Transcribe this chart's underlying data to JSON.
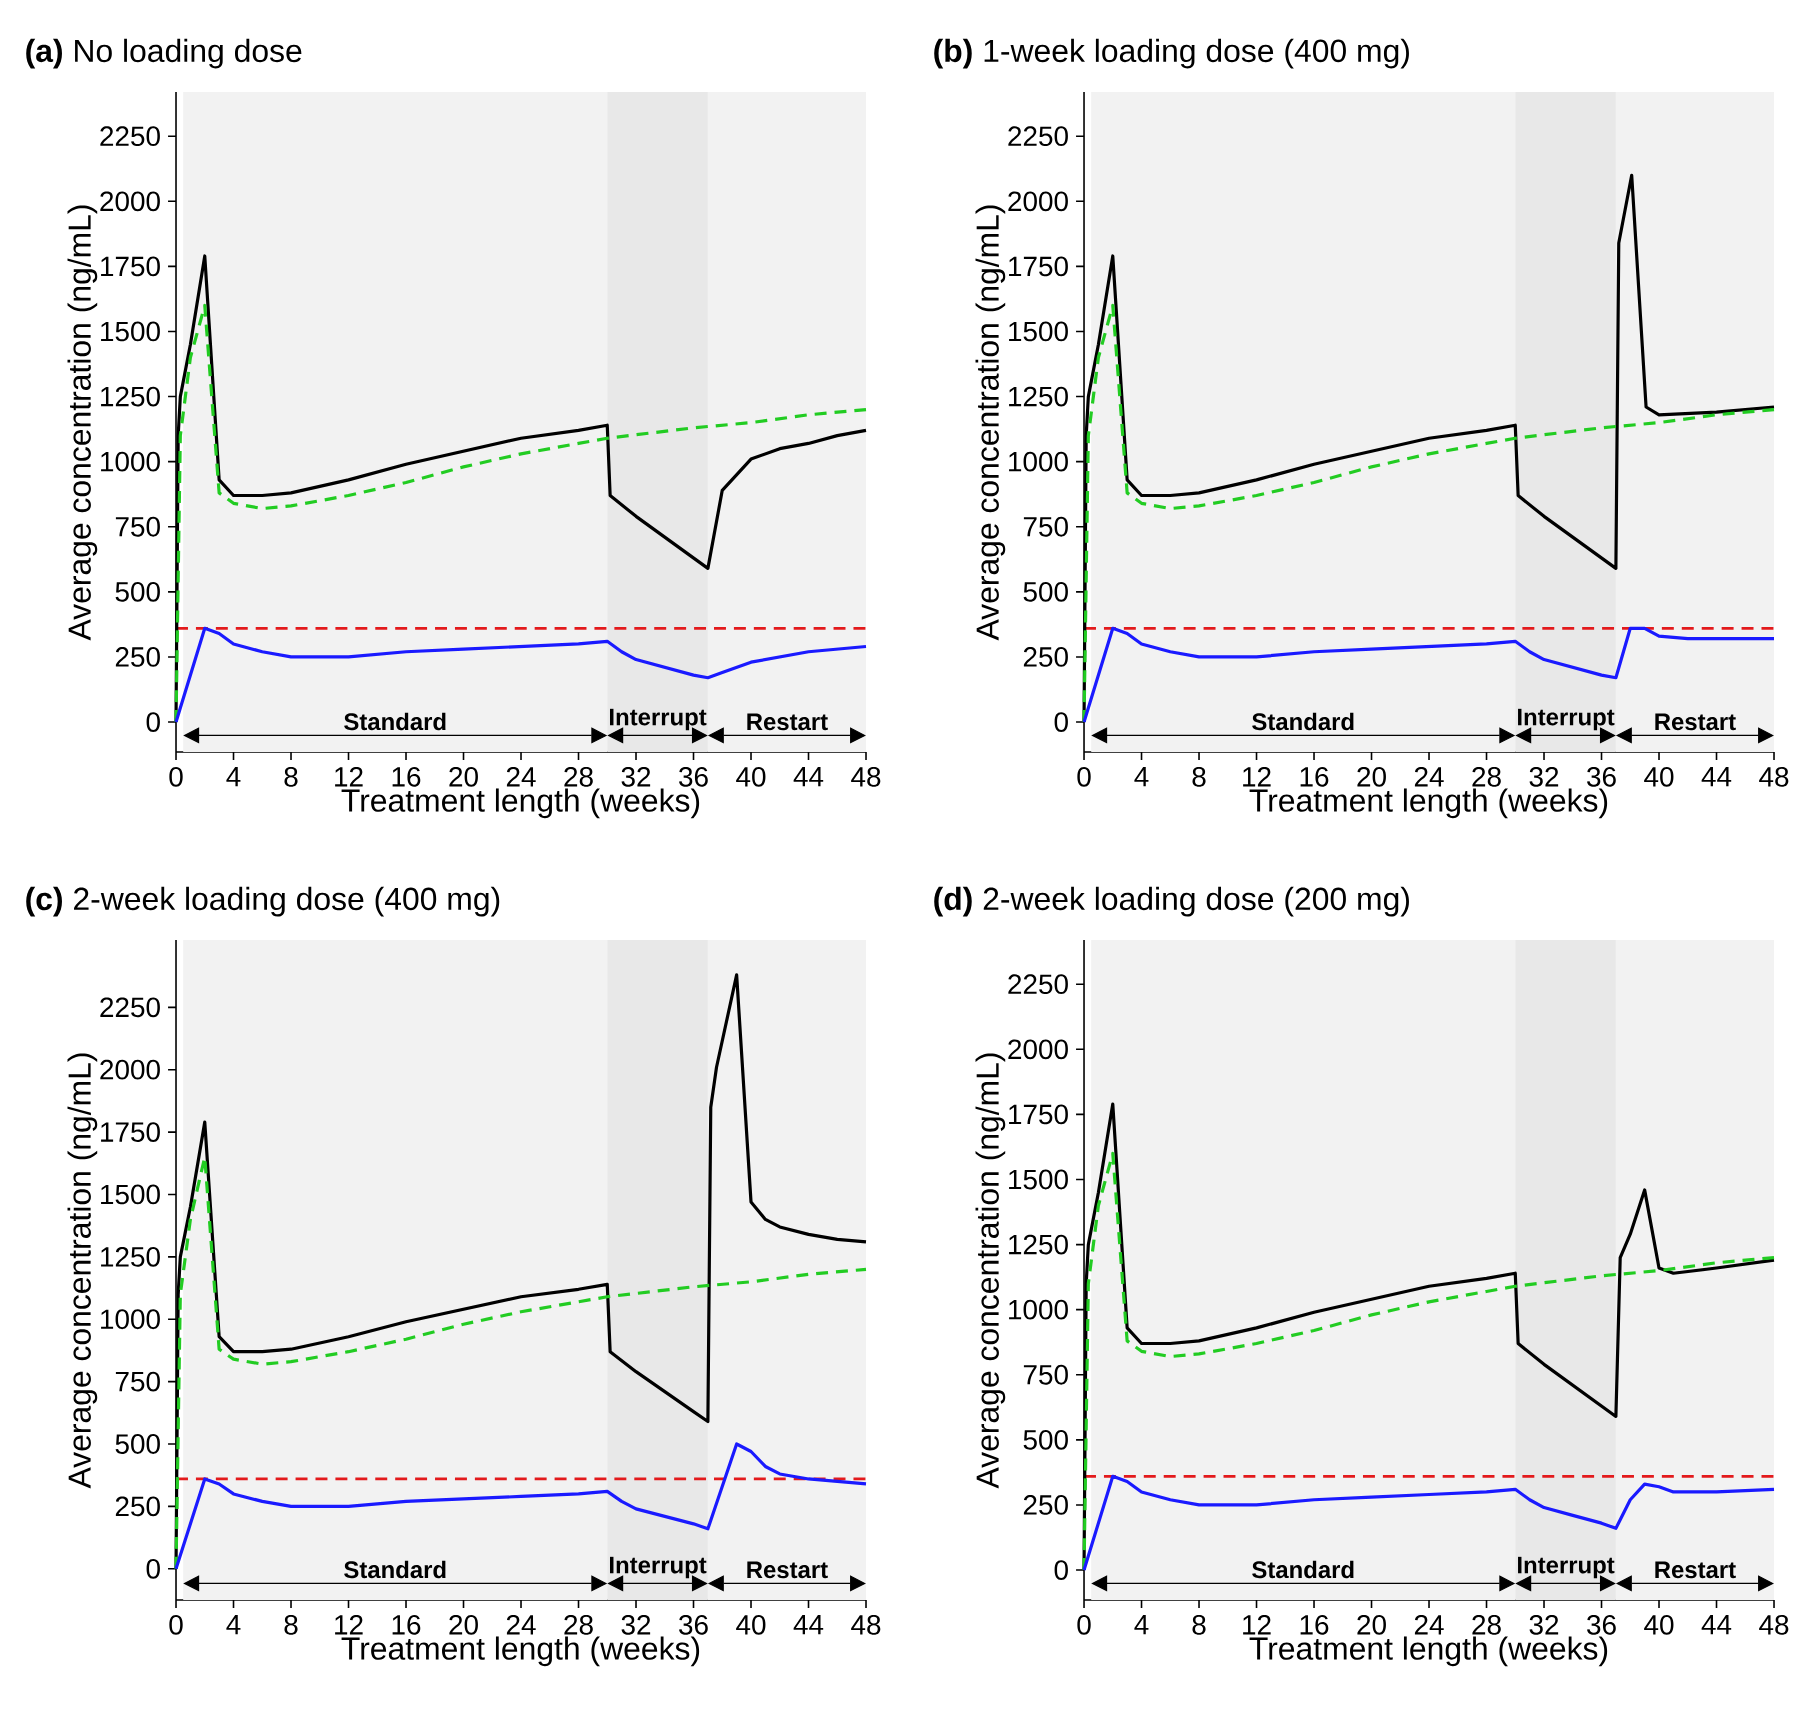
{
  "chart_data": [
    {
      "type": "line",
      "title": "**(a)** No loading dose",
      "xlabel": "Treatment length (weeks)",
      "ylabel": "Average concentration (ng/mL)",
      "xlim": [
        0,
        48
      ],
      "ylim": [
        -115,
        2420
      ],
      "xticks": [
        0,
        4,
        8,
        12,
        16,
        20,
        24,
        28,
        32,
        36,
        40,
        44,
        48
      ],
      "yticks": [
        0,
        250,
        500,
        750,
        1000,
        1250,
        1500,
        1750,
        2000,
        2250
      ],
      "series": [
        {
          "color": "#000000",
          "line_style": "solid",
          "x": [
            0,
            0.15,
            0.3,
            1,
            2,
            3,
            4,
            6,
            8,
            12,
            16,
            20,
            24,
            28,
            30,
            30.2,
            32,
            34,
            36,
            37,
            38,
            40,
            42,
            44,
            46,
            48
          ],
          "values": [
            0,
            1100,
            1250,
            1450,
            1790,
            930,
            870,
            870,
            880,
            930,
            990,
            1040,
            1090,
            1120,
            1140,
            870,
            790,
            710,
            630,
            590,
            890,
            1010,
            1050,
            1070,
            1100,
            1120
          ]
        },
        {
          "color": "#22cc22",
          "line_style": "dashed",
          "x": [
            0,
            0.3,
            1,
            2,
            3,
            4,
            6,
            8,
            12,
            16,
            20,
            24,
            28,
            30,
            36,
            40,
            44,
            48
          ],
          "values": [
            0,
            1100,
            1400,
            1600,
            880,
            840,
            820,
            830,
            870,
            920,
            980,
            1030,
            1070,
            1090,
            1130,
            1150,
            1180,
            1200
          ]
        },
        {
          "color": "#1a1aff",
          "line_style": "solid",
          "x": [
            0,
            2,
            3,
            4,
            6,
            8,
            12,
            16,
            20,
            24,
            28,
            30,
            31,
            32,
            34,
            36,
            37,
            38,
            40,
            44,
            48
          ],
          "values": [
            0,
            360,
            340,
            300,
            270,
            250,
            250,
            270,
            280,
            290,
            300,
            310,
            270,
            240,
            210,
            180,
            170,
            190,
            230,
            270,
            290
          ]
        }
      ],
      "ref_lines": [
        {
          "axis": "y",
          "value": 360,
          "color": "#e31a1c",
          "line_style": "dashed"
        }
      ],
      "bands": [
        {
          "axis": "x",
          "from": 0.5,
          "to": 30,
          "label": "Standard",
          "color": "#f2f2f2"
        },
        {
          "axis": "x",
          "from": 30,
          "to": 37,
          "label": "Interrupt",
          "color": "#e8e8e8"
        },
        {
          "axis": "x",
          "from": 37,
          "to": 48,
          "label": "Restart",
          "color": "#f2f2f2"
        }
      ]
    },
    {
      "type": "line",
      "title": "**(b)** 1-week loading dose (400 mg)",
      "xlabel": "Treatment length (weeks)",
      "ylabel": "Average concentration (ng/mL)",
      "xlim": [
        0,
        48
      ],
      "ylim": [
        -115,
        2420
      ],
      "xticks": [
        0,
        4,
        8,
        12,
        16,
        20,
        24,
        28,
        32,
        36,
        40,
        44,
        48
      ],
      "yticks": [
        0,
        250,
        500,
        750,
        1000,
        1250,
        1500,
        1750,
        2000,
        2250
      ],
      "series": [
        {
          "color": "#000000",
          "line_style": "solid",
          "x": [
            0,
            0.15,
            0.3,
            1,
            2,
            3,
            4,
            6,
            8,
            12,
            16,
            20,
            24,
            28,
            30,
            30.2,
            32,
            34,
            36,
            37,
            37.2,
            38.1,
            39.1,
            40,
            44,
            48
          ],
          "values": [
            0,
            1100,
            1250,
            1450,
            1790,
            930,
            870,
            870,
            880,
            930,
            990,
            1040,
            1090,
            1120,
            1140,
            870,
            790,
            710,
            630,
            590,
            1840,
            2100,
            1210,
            1180,
            1190,
            1210
          ]
        },
        {
          "color": "#22cc22",
          "line_style": "dashed",
          "x": [
            0,
            0.3,
            1,
            2,
            3,
            4,
            6,
            8,
            12,
            16,
            20,
            24,
            28,
            30,
            36,
            40,
            44,
            48
          ],
          "values": [
            0,
            1100,
            1400,
            1600,
            880,
            840,
            820,
            830,
            870,
            920,
            980,
            1030,
            1070,
            1090,
            1130,
            1150,
            1180,
            1200
          ]
        },
        {
          "color": "#1a1aff",
          "line_style": "solid",
          "x": [
            0,
            2,
            3,
            4,
            6,
            8,
            12,
            16,
            20,
            24,
            28,
            30,
            31,
            32,
            34,
            36,
            37,
            38,
            39,
            40,
            42,
            48
          ],
          "values": [
            0,
            360,
            340,
            300,
            270,
            250,
            250,
            270,
            280,
            290,
            300,
            310,
            270,
            240,
            210,
            180,
            170,
            360,
            360,
            330,
            320,
            320
          ]
        }
      ],
      "ref_lines": [
        {
          "axis": "y",
          "value": 360,
          "color": "#e31a1c",
          "line_style": "dashed"
        }
      ],
      "bands": [
        {
          "axis": "x",
          "from": 0.5,
          "to": 30,
          "label": "Standard",
          "color": "#f2f2f2"
        },
        {
          "axis": "x",
          "from": 30,
          "to": 37,
          "label": "Interrupt",
          "color": "#e8e8e8"
        },
        {
          "axis": "x",
          "from": 37,
          "to": 48,
          "label": "Restart",
          "color": "#f2f2f2"
        }
      ]
    },
    {
      "type": "line",
      "title": "**(c)** 2-week loading dose (400 mg)",
      "xlabel": "Treatment length (weeks)",
      "ylabel": "Average concentration (ng/mL)",
      "xlim": [
        0,
        48
      ],
      "ylim": [
        -125,
        2520
      ],
      "xticks": [
        0,
        4,
        8,
        12,
        16,
        20,
        24,
        28,
        32,
        36,
        40,
        44,
        48
      ],
      "yticks": [
        0,
        250,
        500,
        750,
        1000,
        1250,
        1500,
        1750,
        2000,
        2250
      ],
      "series": [
        {
          "color": "#000000",
          "line_style": "solid",
          "x": [
            0,
            0.15,
            0.3,
            1,
            2,
            3,
            4,
            6,
            8,
            12,
            16,
            20,
            24,
            28,
            30,
            30.2,
            32,
            34,
            36,
            37,
            37.2,
            37.6,
            39,
            40,
            41,
            42,
            44,
            46,
            48
          ],
          "values": [
            0,
            1100,
            1250,
            1450,
            1790,
            930,
            870,
            870,
            880,
            930,
            990,
            1040,
            1090,
            1120,
            1140,
            870,
            790,
            710,
            630,
            590,
            1850,
            2010,
            2380,
            1470,
            1400,
            1370,
            1340,
            1320,
            1310
          ]
        },
        {
          "color": "#22cc22",
          "line_style": "dashed",
          "x": [
            0,
            0.3,
            1,
            2,
            3,
            4,
            6,
            8,
            12,
            16,
            20,
            24,
            28,
            30,
            36,
            40,
            44,
            48
          ],
          "values": [
            0,
            1100,
            1400,
            1650,
            880,
            840,
            820,
            830,
            870,
            920,
            980,
            1030,
            1070,
            1090,
            1130,
            1150,
            1180,
            1200
          ]
        },
        {
          "color": "#1a1aff",
          "line_style": "solid",
          "x": [
            0,
            2,
            3,
            4,
            6,
            8,
            12,
            16,
            20,
            24,
            28,
            30,
            31,
            32,
            34,
            36,
            37,
            38,
            39,
            40,
            41,
            42,
            44,
            46,
            48
          ],
          "values": [
            0,
            360,
            340,
            300,
            270,
            250,
            250,
            270,
            280,
            290,
            300,
            310,
            270,
            240,
            210,
            180,
            160,
            330,
            500,
            470,
            410,
            380,
            360,
            350,
            340
          ]
        }
      ],
      "ref_lines": [
        {
          "axis": "y",
          "value": 360,
          "color": "#e31a1c",
          "line_style": "dashed"
        }
      ],
      "bands": [
        {
          "axis": "x",
          "from": 0.5,
          "to": 30,
          "label": "Standard",
          "color": "#f2f2f2"
        },
        {
          "axis": "x",
          "from": 30,
          "to": 37,
          "label": "Interrupt",
          "color": "#e8e8e8"
        },
        {
          "axis": "x",
          "from": 37,
          "to": 48,
          "label": "Restart",
          "color": "#f2f2f2"
        }
      ]
    },
    {
      "type": "line",
      "title": "**(d)** 2-week loading dose (200 mg)",
      "xlabel": "Treatment length (weeks)",
      "ylabel": "Average concentration (ng/mL)",
      "xlim": [
        0,
        48
      ],
      "ylim": [
        -115,
        2420
      ],
      "xticks": [
        0,
        4,
        8,
        12,
        16,
        20,
        24,
        28,
        32,
        36,
        40,
        44,
        48
      ],
      "yticks": [
        0,
        250,
        500,
        750,
        1000,
        1250,
        1500,
        1750,
        2000,
        2250
      ],
      "series": [
        {
          "color": "#000000",
          "line_style": "solid",
          "x": [
            0,
            0.15,
            0.3,
            1,
            2,
            3,
            4,
            6,
            8,
            12,
            16,
            20,
            24,
            28,
            30,
            30.2,
            32,
            34,
            36,
            37,
            37.3,
            38,
            39,
            40,
            41,
            44,
            48
          ],
          "values": [
            0,
            1100,
            1250,
            1450,
            1790,
            930,
            870,
            870,
            880,
            930,
            990,
            1040,
            1090,
            1120,
            1140,
            870,
            790,
            710,
            630,
            590,
            1200,
            1290,
            1460,
            1160,
            1140,
            1160,
            1190
          ]
        },
        {
          "color": "#22cc22",
          "line_style": "dashed",
          "x": [
            0,
            0.3,
            1,
            2,
            3,
            4,
            6,
            8,
            12,
            16,
            20,
            24,
            28,
            30,
            36,
            40,
            44,
            48
          ],
          "values": [
            0,
            1100,
            1400,
            1600,
            880,
            840,
            820,
            830,
            870,
            920,
            980,
            1030,
            1070,
            1090,
            1130,
            1150,
            1180,
            1200
          ]
        },
        {
          "color": "#1a1aff",
          "line_style": "solid",
          "x": [
            0,
            2,
            3,
            4,
            6,
            8,
            12,
            16,
            20,
            24,
            28,
            30,
            31,
            32,
            34,
            36,
            37,
            38,
            39,
            40,
            41,
            44,
            48
          ],
          "values": [
            0,
            360,
            340,
            300,
            270,
            250,
            250,
            270,
            280,
            290,
            300,
            310,
            270,
            240,
            210,
            180,
            160,
            270,
            330,
            320,
            300,
            300,
            310
          ]
        }
      ],
      "ref_lines": [
        {
          "axis": "y",
          "value": 360,
          "color": "#e31a1c",
          "line_style": "dashed"
        }
      ],
      "bands": [
        {
          "axis": "x",
          "from": 0.5,
          "to": 30,
          "label": "Standard",
          "color": "#f2f2f2"
        },
        {
          "axis": "x",
          "from": 30,
          "to": 37,
          "label": "Interrupt",
          "color": "#e8e8e8"
        },
        {
          "axis": "x",
          "from": 37,
          "to": 48,
          "label": "Restart",
          "color": "#f2f2f2"
        }
      ]
    }
  ]
}
